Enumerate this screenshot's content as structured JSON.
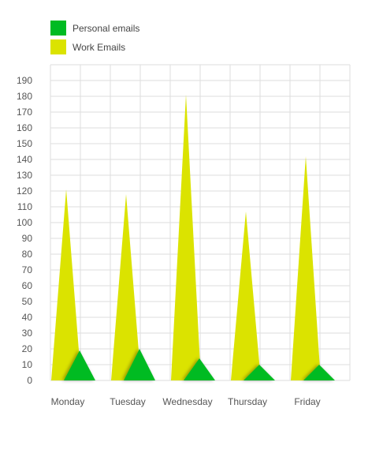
{
  "chart_data": {
    "type": "bar",
    "style": "pointed-triangles",
    "categories": [
      "Monday",
      "Tuesday",
      "Wednesday",
      "Thursday",
      "Friday"
    ],
    "series": [
      {
        "name": "Work Emails",
        "color": "#dbe300",
        "values": [
          121,
          118,
          181,
          107,
          142
        ]
      },
      {
        "name": "Personal emails",
        "color": "#00bb22",
        "values": [
          19,
          20,
          14,
          10,
          10
        ]
      }
    ],
    "ylim": [
      0,
      200
    ],
    "yticks": [
      0,
      10,
      20,
      30,
      40,
      50,
      60,
      70,
      80,
      90,
      100,
      110,
      120,
      130,
      140,
      150,
      160,
      170,
      180,
      190
    ],
    "grid": true,
    "legend_position": "top-left",
    "legend": [
      {
        "name": "Personal emails",
        "color": "#00bb22"
      },
      {
        "name": "Work Emails",
        "color": "#dbe300"
      }
    ]
  }
}
